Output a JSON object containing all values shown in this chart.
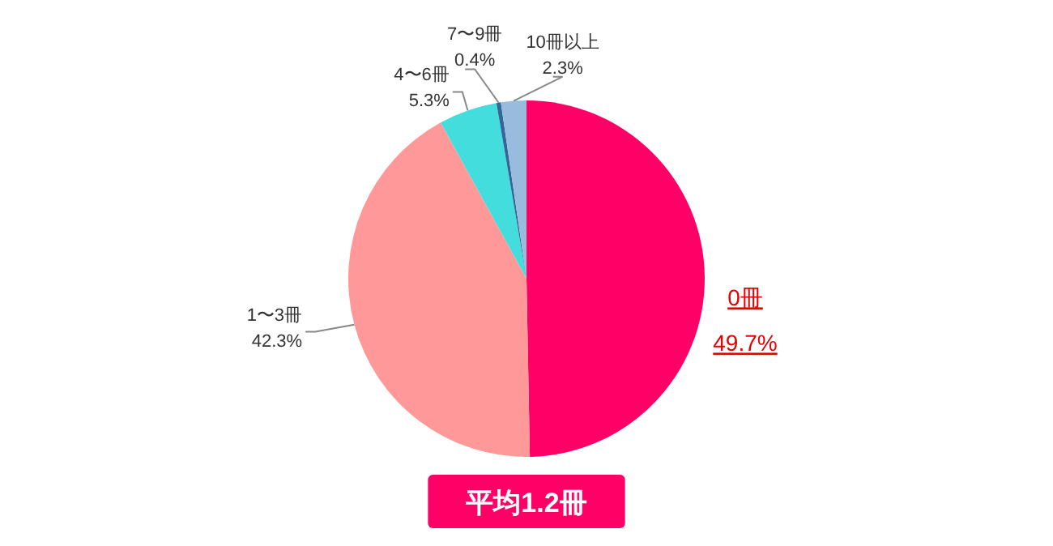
{
  "chart_data": {
    "type": "pie",
    "categories": [
      "0冊",
      "1〜3冊",
      "4〜6冊",
      "7〜9冊",
      "10冊以上"
    ],
    "values": [
      49.7,
      42.3,
      5.3,
      0.4,
      2.3
    ],
    "colors": [
      "#ff0066",
      "#ff9999",
      "#44dddd",
      "#336699",
      "#99bbdd"
    ],
    "value_labels": [
      "49.7%",
      "42.3%",
      "5.3%",
      "0.4%",
      "2.3%"
    ],
    "annotations": [
      "平均1.2冊"
    ]
  }
}
